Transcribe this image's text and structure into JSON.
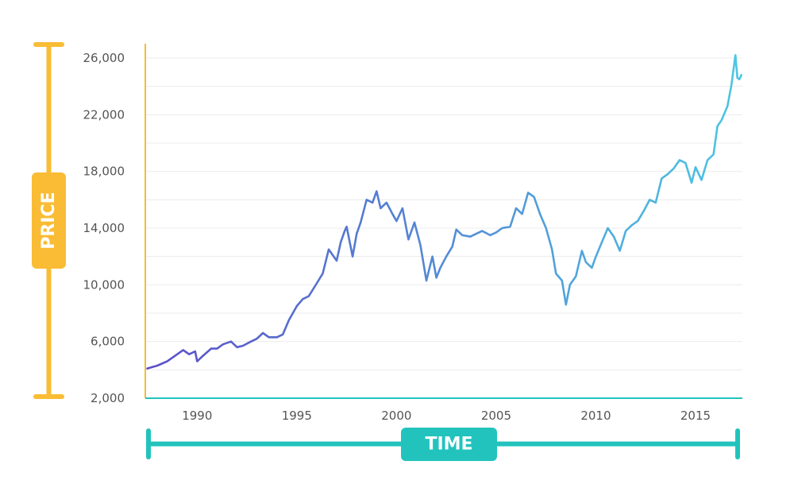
{
  "colors": {
    "price_accent": "#F9BC34",
    "time_accent": "#22C3BD",
    "grid": "#ECECEC",
    "line_start": "#5B4FC8",
    "line_end": "#4CC7E3",
    "tick_text": "#555555"
  },
  "price_label": "PRICE",
  "time_label": "TIME",
  "chart_data": {
    "type": "line",
    "title": "",
    "xlabel": "TIME",
    "ylabel": "PRICE",
    "xlim": [
      1987.4,
      2017.35
    ],
    "ylim": [
      2000,
      26000
    ],
    "x_ticks": [
      1990,
      1995,
      2000,
      2005,
      2010,
      2015
    ],
    "x_tick_labels": [
      "1990",
      "1995",
      "2000",
      "2005",
      "2010",
      "2015"
    ],
    "y_ticks": [
      2000,
      6000,
      10000,
      14000,
      18000,
      22000,
      26000
    ],
    "y_tick_labels": [
      "2,000",
      "6,000",
      "10,000",
      "14,000",
      "18,000",
      "22,000",
      "26,000"
    ],
    "grid": true,
    "legend": "none",
    "series": [
      {
        "x": [
          1987.5,
          1988.0,
          1988.5,
          1989.0,
          1989.3,
          1989.6,
          1989.9,
          1990.0,
          1990.3,
          1990.7,
          1991.0,
          1991.3,
          1991.7,
          1992.0,
          1992.3,
          1992.7,
          1993.0,
          1993.3,
          1993.6,
          1994.0,
          1994.3,
          1994.6,
          1995.0,
          1995.3,
          1995.6,
          1996.0,
          1996.3,
          1996.6,
          1997.0,
          1997.2,
          1997.4,
          1997.5,
          1997.8,
          1998.0,
          1998.2,
          1998.5,
          1998.8,
          1999.0,
          1999.2,
          1999.5,
          1999.8,
          2000.0,
          2000.3,
          2000.6,
          2000.9,
          2001.2,
          2001.5,
          2001.8,
          2002.0,
          2002.2,
          2002.5,
          2002.8,
          2003.0,
          2003.3,
          2003.7,
          2004.0,
          2004.3,
          2004.7,
          2005.0,
          2005.3,
          2005.7,
          2006.0,
          2006.3,
          2006.6,
          2006.9,
          2007.2,
          2007.5,
          2007.8,
          2008.0,
          2008.3,
          2008.5,
          2008.7,
          2009.0,
          2009.3,
          2009.5,
          2009.8,
          2010.0,
          2010.3,
          2010.6,
          2010.9,
          2011.2,
          2011.5,
          2011.8,
          2012.1,
          2012.4,
          2012.7,
          2013.0,
          2013.3,
          2013.6,
          2013.9,
          2014.2,
          2014.5,
          2014.8,
          2015.0,
          2015.3,
          2015.6,
          2015.9,
          2016.1,
          2016.3,
          2016.6,
          2016.8,
          2017.0,
          2017.1,
          2017.2,
          2017.3
        ],
        "values": [
          4100,
          4300,
          4600,
          5100,
          5400,
          5100,
          5300,
          4600,
          5000,
          5500,
          5500,
          5800,
          6000,
          5600,
          5700,
          6000,
          6200,
          6600,
          6300,
          6300,
          6500,
          7500,
          8500,
          9000,
          9200,
          10100,
          10800,
          12500,
          11700,
          13000,
          13800,
          14100,
          12000,
          13600,
          14400,
          16000,
          15800,
          16600,
          15400,
          15800,
          15000,
          14500,
          15400,
          13200,
          14400,
          12800,
          10300,
          12000,
          10500,
          11200,
          12000,
          12700,
          13900,
          13500,
          13400,
          13600,
          13800,
          13500,
          13700,
          14000,
          14100,
          15400,
          15000,
          16500,
          16200,
          15000,
          14000,
          12500,
          10800,
          10300,
          8600,
          10000,
          10600,
          12400,
          11600,
          11200,
          12000,
          13000,
          14000,
          13400,
          12400,
          13800,
          14200,
          14500,
          15200,
          16000,
          15800,
          17500,
          17800,
          18200,
          18800,
          18600,
          17200,
          18300,
          17400,
          18800,
          19200,
          21200,
          21600,
          22600,
          24100,
          26200,
          24600,
          24500,
          24800
        ]
      }
    ]
  }
}
